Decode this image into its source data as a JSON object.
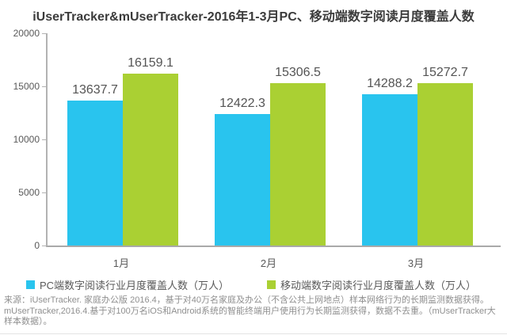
{
  "title": "iUserTracker&mUserTracker-2016年1-3月PC、移动端数字阅读月度覆盖人数",
  "chart_data": {
    "type": "bar",
    "categories": [
      "1月",
      "2月",
      "3月"
    ],
    "series": [
      {
        "name": "PC端数字阅读行业月度覆盖人数（万人）",
        "color": "#29c4ee",
        "values": [
          13637.7,
          12422.3,
          14288.2
        ]
      },
      {
        "name": "移动端数字阅读行业月度覆盖人数（万人）",
        "color": "#aad033",
        "values": [
          16159.1,
          15306.5,
          15272.7
        ]
      }
    ],
    "ylim": [
      0,
      20000
    ],
    "yticks": [
      0,
      5000,
      10000,
      15000,
      20000
    ],
    "grid": false,
    "legend_position": "bottom",
    "axis_color": "#aaaaaa"
  },
  "footer": {
    "lines": [
      "来源：iUserTracker. 家庭办公版 2016.4，基于对40万名家庭及办公（不含公共上网地点）样本网络行为的长期监测数据获得。",
      "mUserTracker,2016.4.基于对100万名iOS和Android系统的智能终端用户使用行为长期监测获得，数据不去重。（mUserTracker大",
      "样本数据）。"
    ]
  }
}
